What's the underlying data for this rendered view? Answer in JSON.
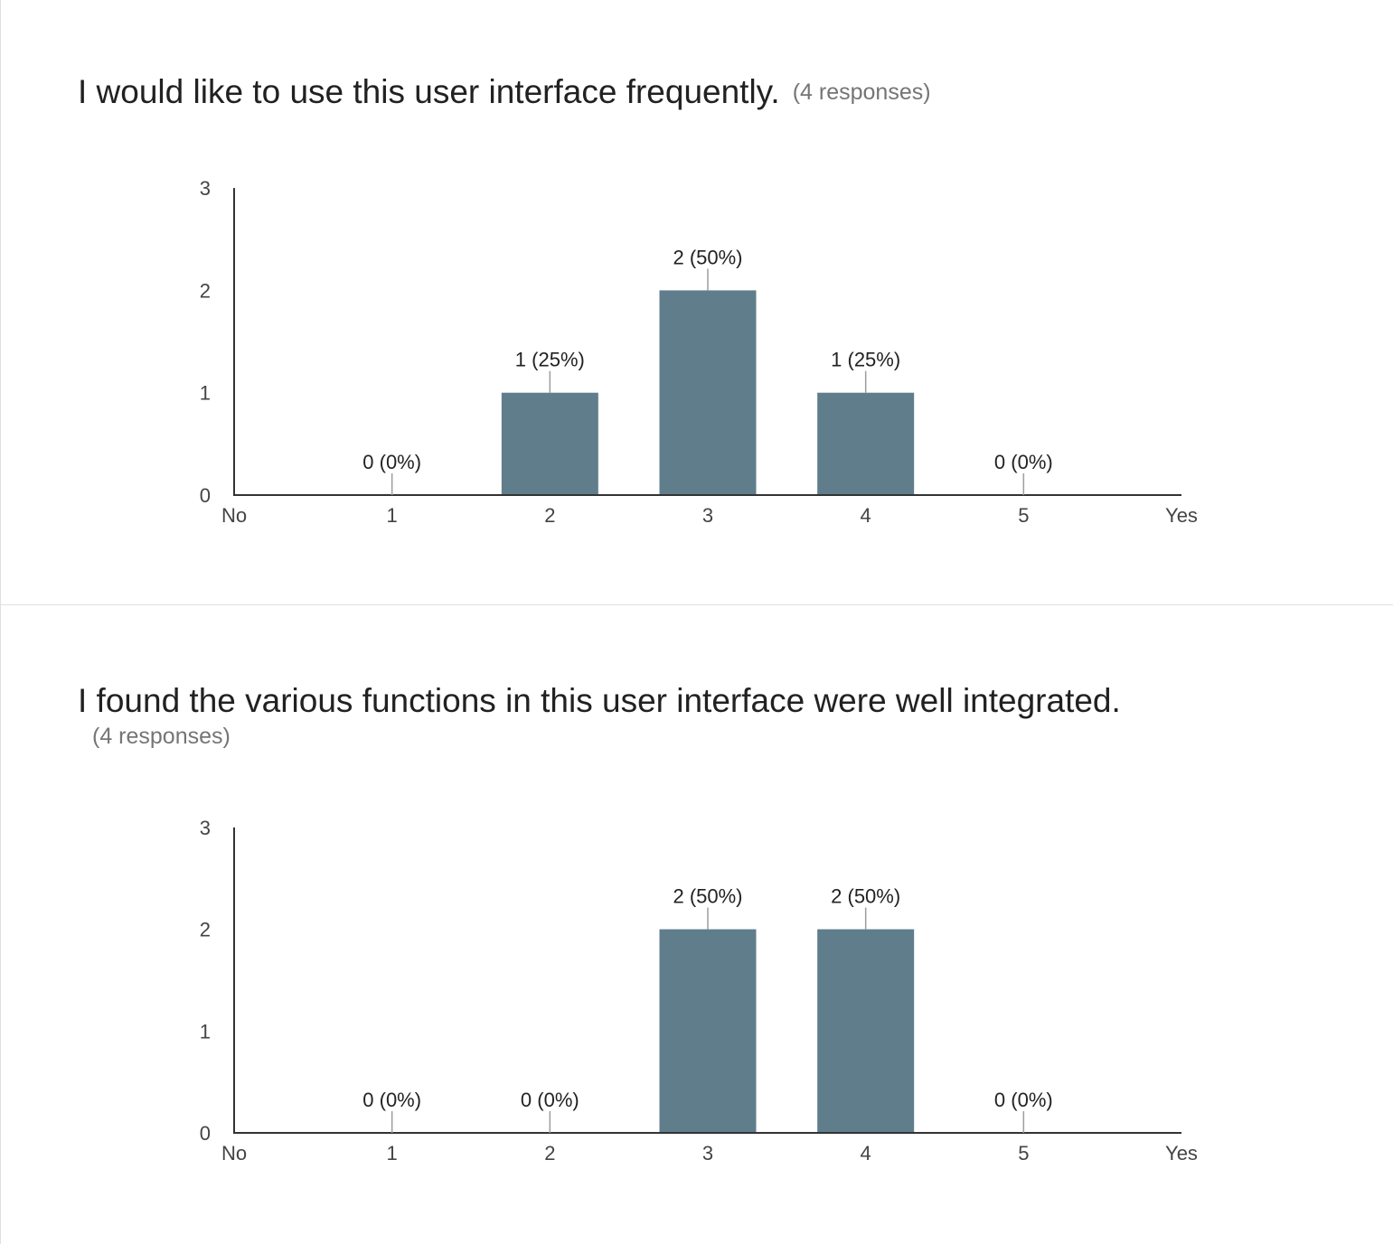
{
  "questions": [
    {
      "title": "I would like to use this user interface frequently.",
      "responses": "(4 responses)"
    },
    {
      "title": "I found the various functions in this user interface were well integrated.",
      "responses": "(4 responses)"
    }
  ],
  "colors": {
    "bar": "#607d8b",
    "axis": "#333333",
    "leader": "#9e9e9e"
  },
  "chart_data": [
    {
      "type": "bar",
      "title": "I would like to use this user interface frequently.",
      "x_tick_labels": [
        "No",
        "1",
        "2",
        "3",
        "4",
        "5",
        "Yes"
      ],
      "categories": [
        "1",
        "2",
        "3",
        "4",
        "5"
      ],
      "values": [
        0,
        1,
        2,
        1,
        0
      ],
      "data_labels": [
        "0 (0%)",
        "1 (25%)",
        "2 (50%)",
        "1 (25%)",
        "0 (0%)"
      ],
      "y_ticks": [
        0,
        1,
        2,
        3
      ],
      "ylim": [
        0,
        3
      ],
      "grid": false,
      "legend": "none"
    },
    {
      "type": "bar",
      "title": "I found the various functions in this user interface were well integrated.",
      "x_tick_labels": [
        "No",
        "1",
        "2",
        "3",
        "4",
        "5",
        "Yes"
      ],
      "categories": [
        "1",
        "2",
        "3",
        "4",
        "5"
      ],
      "values": [
        0,
        0,
        2,
        2,
        0
      ],
      "data_labels": [
        "0 (0%)",
        "0 (0%)",
        "2 (50%)",
        "2 (50%)",
        "0 (0%)"
      ],
      "y_ticks": [
        0,
        1,
        2,
        3
      ],
      "ylim": [
        0,
        3
      ],
      "grid": false,
      "legend": "none"
    }
  ]
}
